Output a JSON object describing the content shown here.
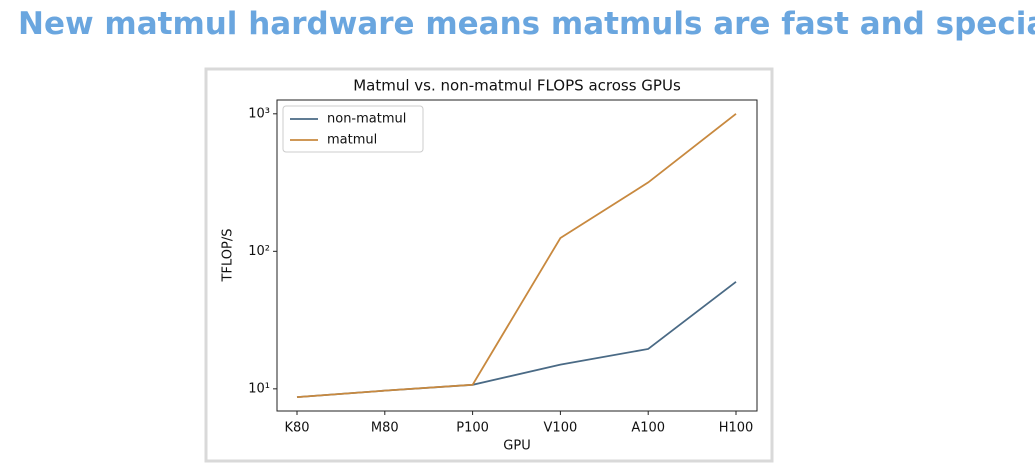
{
  "heading": "New matmul hardware means matmuls are fast and special",
  "chart_data": {
    "type": "line",
    "title": "Matmul vs. non-matmul FLOPS across GPUs",
    "x_label": "GPU",
    "y_label": "TFLOP/S",
    "categories": [
      "K80",
      "M80",
      "P100",
      "V100",
      "A100",
      "H100"
    ],
    "series": [
      {
        "name": "non-matmul",
        "color": "#4a6a85",
        "values": [
          8.7,
          9.7,
          10.7,
          15,
          19.5,
          60
        ]
      },
      {
        "name": "matmul",
        "color": "#c8893f",
        "values": [
          8.7,
          9.7,
          10.7,
          125,
          317,
          1000
        ]
      }
    ],
    "ylim": [
      6.9,
      1260
    ],
    "log_y": true,
    "yticks": [
      {
        "value": 10,
        "label": "10¹"
      },
      {
        "value": 100,
        "label": "10²"
      },
      {
        "value": 1000,
        "label": "10³"
      }
    ],
    "legend": "upper-left"
  }
}
